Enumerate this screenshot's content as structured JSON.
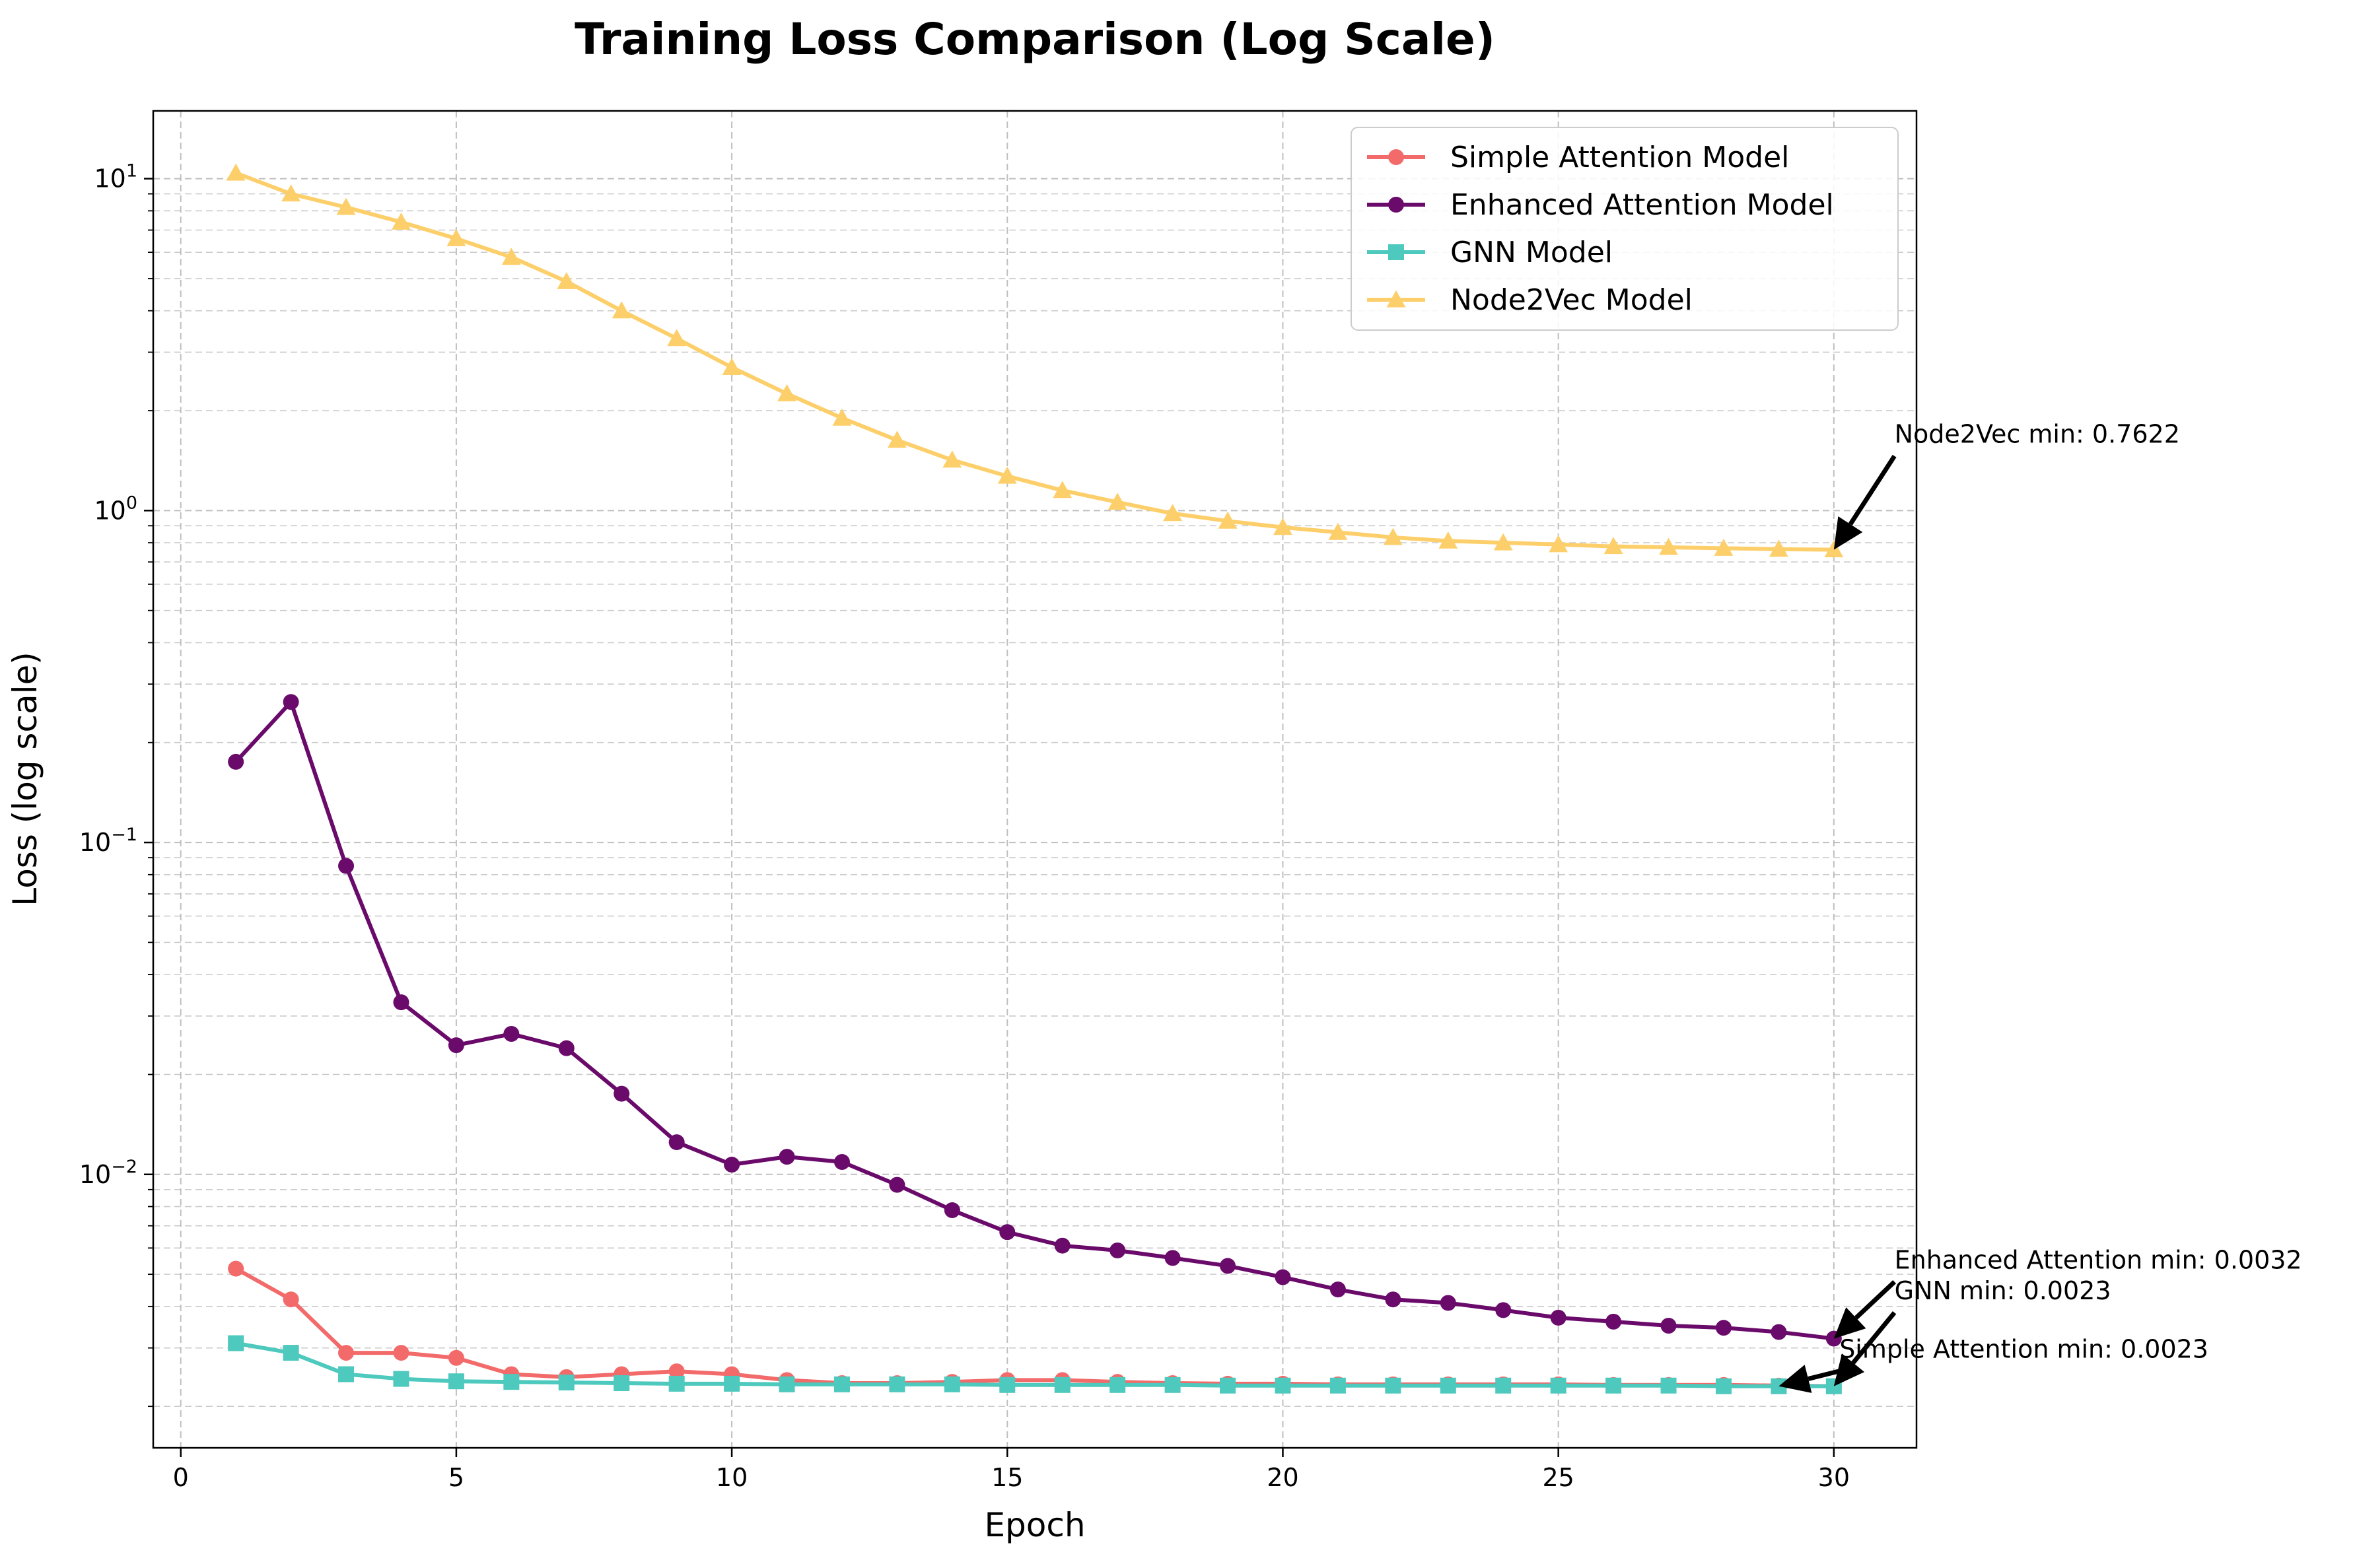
{
  "chart_data": {
    "type": "line",
    "title": "Training Loss Comparison (Log Scale)",
    "xlabel": "Epoch",
    "ylabel": "Loss (log scale)",
    "yscale": "log",
    "xlim": [
      -0.5,
      31.5
    ],
    "ylim": [
      0.0015,
      16
    ],
    "grid": true,
    "legend_position": "top-right",
    "x_ticks": [
      0,
      5,
      10,
      15,
      20,
      25,
      30
    ],
    "x_tick_labels": [
      "0",
      "5",
      "10",
      "15",
      "20",
      "25",
      "30"
    ],
    "y_ticks": [
      0.01,
      0.1,
      1,
      10
    ],
    "y_tick_labels": [
      {
        "base": "10",
        "exp": "−2"
      },
      {
        "base": "10",
        "exp": "−1"
      },
      {
        "base": "10",
        "exp": "0"
      },
      {
        "base": "10",
        "exp": "1"
      }
    ],
    "x": [
      1,
      2,
      3,
      4,
      5,
      6,
      7,
      8,
      9,
      10,
      11,
      12,
      13,
      14,
      15,
      16,
      17,
      18,
      19,
      20,
      21,
      22,
      23,
      24,
      25,
      26,
      27,
      28,
      29,
      30
    ],
    "series": [
      {
        "name": "Simple Attention Model",
        "color": "#f26a6a",
        "marker": "circle",
        "values": [
          0.0052,
          0.0042,
          0.0029,
          0.0029,
          0.0028,
          0.0025,
          0.00245,
          0.0025,
          0.00255,
          0.0025,
          0.0024,
          0.00235,
          0.00235,
          0.00237,
          0.0024,
          0.0024,
          0.00237,
          0.00235,
          0.00234,
          0.00234,
          0.00233,
          0.00233,
          0.00233,
          0.00233,
          0.00233,
          0.00232,
          0.00232,
          0.00232,
          0.00231,
          0.0023
        ]
      },
      {
        "name": "Enhanced Attention Model",
        "color": "#6a0a6a",
        "marker": "circle",
        "values": [
          0.175,
          0.265,
          0.085,
          0.033,
          0.0245,
          0.0265,
          0.024,
          0.0175,
          0.0125,
          0.0107,
          0.0113,
          0.0109,
          0.0093,
          0.0078,
          0.0067,
          0.0061,
          0.0059,
          0.0056,
          0.0053,
          0.0049,
          0.0045,
          0.0042,
          0.0041,
          0.0039,
          0.0037,
          0.0036,
          0.0035,
          0.00345,
          0.00335,
          0.0032
        ]
      },
      {
        "name": "GNN Model",
        "color": "#4ec9bd",
        "marker": "square",
        "values": [
          0.0031,
          0.0029,
          0.0025,
          0.00242,
          0.00238,
          0.00237,
          0.00236,
          0.00235,
          0.00234,
          0.00234,
          0.00233,
          0.00233,
          0.00233,
          0.00233,
          0.00232,
          0.00232,
          0.00232,
          0.00232,
          0.00231,
          0.00231,
          0.00231,
          0.00231,
          0.00231,
          0.00231,
          0.00231,
          0.00231,
          0.00231,
          0.0023,
          0.0023,
          0.0023
        ]
      },
      {
        "name": "Node2Vec Model",
        "color": "#fdcf6b",
        "marker": "triangle",
        "values": [
          10.4,
          9.0,
          8.2,
          7.4,
          6.6,
          5.8,
          4.9,
          4.0,
          3.3,
          2.7,
          2.25,
          1.9,
          1.63,
          1.42,
          1.27,
          1.15,
          1.06,
          0.98,
          0.93,
          0.89,
          0.86,
          0.83,
          0.81,
          0.8,
          0.79,
          0.78,
          0.775,
          0.77,
          0.765,
          0.7622
        ]
      }
    ],
    "annotations": [
      {
        "text": "Node2Vec min: 0.7622",
        "x": 30,
        "y": 0.7622,
        "text_x": 31.1,
        "text_y": 1.6
      },
      {
        "text": "Enhanced Attention min: 0.0032",
        "x": 30,
        "y": 0.0032,
        "text_x": 31.1,
        "text_y": 0.0052
      },
      {
        "text": "GNN min: 0.0023",
        "x": 30,
        "y": 0.0023,
        "text_x": 31.1,
        "text_y": 0.0042
      },
      {
        "text": "Simple Attention min: 0.0023",
        "x": 29,
        "y": 0.0023,
        "text_x": 30.1,
        "text_y": 0.0028
      }
    ]
  }
}
